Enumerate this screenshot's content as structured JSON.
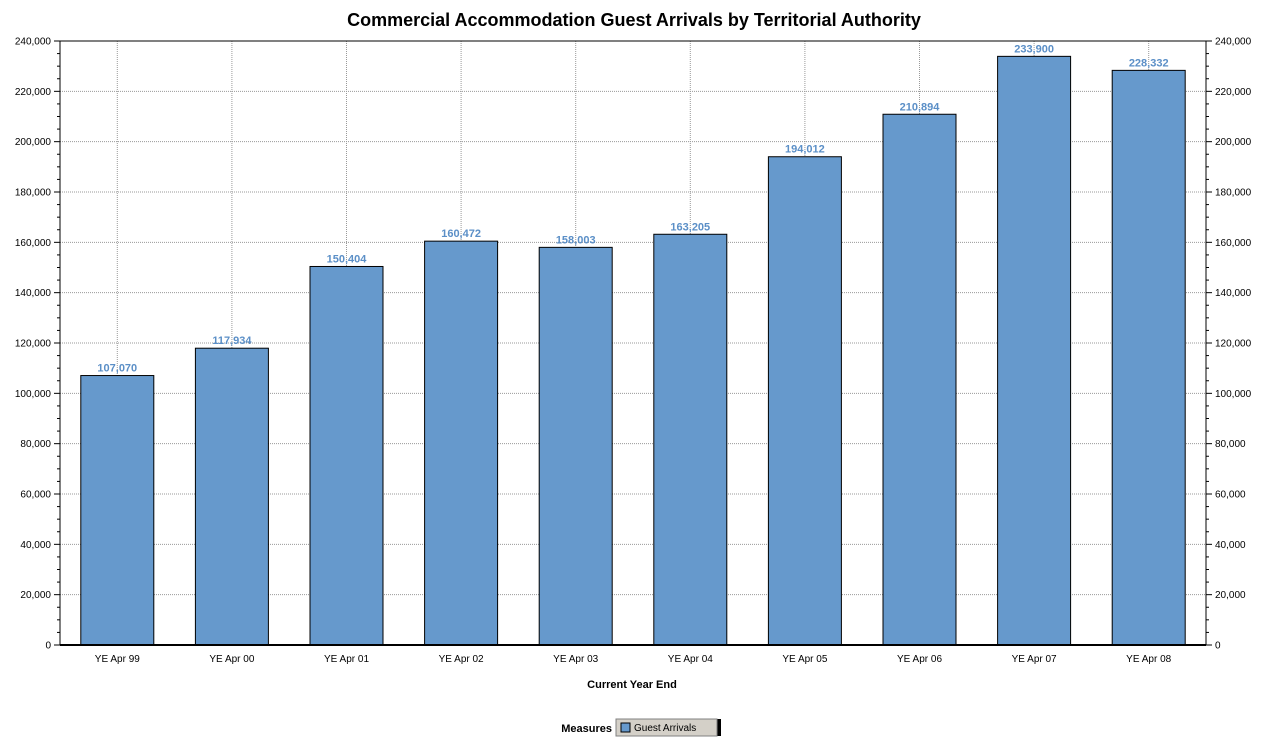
{
  "chart_data": {
    "type": "bar",
    "title": "Commercial Accommodation Guest Arrivals by Territorial Authority",
    "xlabel": "Current Year End",
    "ylabel": "",
    "categories": [
      "YE Apr 99",
      "YE Apr 00",
      "YE Apr 01",
      "YE Apr 02",
      "YE Apr 03",
      "YE Apr 04",
      "YE Apr 05",
      "YE Apr 06",
      "YE Apr 07",
      "YE Apr 08"
    ],
    "series": [
      {
        "name": "Guest Arrivals",
        "values": [
          107070,
          117934,
          150404,
          160472,
          158003,
          163205,
          194012,
          210894,
          233900,
          228332
        ],
        "labels": [
          "107,070",
          "117,934",
          "150,404",
          "160,472",
          "158,003",
          "163,205",
          "194,012",
          "210,894",
          "233,900",
          "228,332"
        ]
      }
    ],
    "ylim": [
      0,
      240000
    ],
    "yticks": [
      0,
      20000,
      40000,
      60000,
      80000,
      100000,
      120000,
      140000,
      160000,
      180000,
      200000,
      220000,
      240000
    ],
    "ytick_labels": [
      "0",
      "20,000",
      "40,000",
      "60,000",
      "80,000",
      "100,000",
      "120,000",
      "140,000",
      "160,000",
      "180,000",
      "200,000",
      "220,000",
      "240,000"
    ],
    "grid": true,
    "legend": {
      "title": "Measures",
      "position": "bottom-center"
    },
    "colors": {
      "bar": "#6699cc",
      "bar_border": "#000000",
      "data_label": "#5b8fc7",
      "grid": "#999999"
    }
  }
}
